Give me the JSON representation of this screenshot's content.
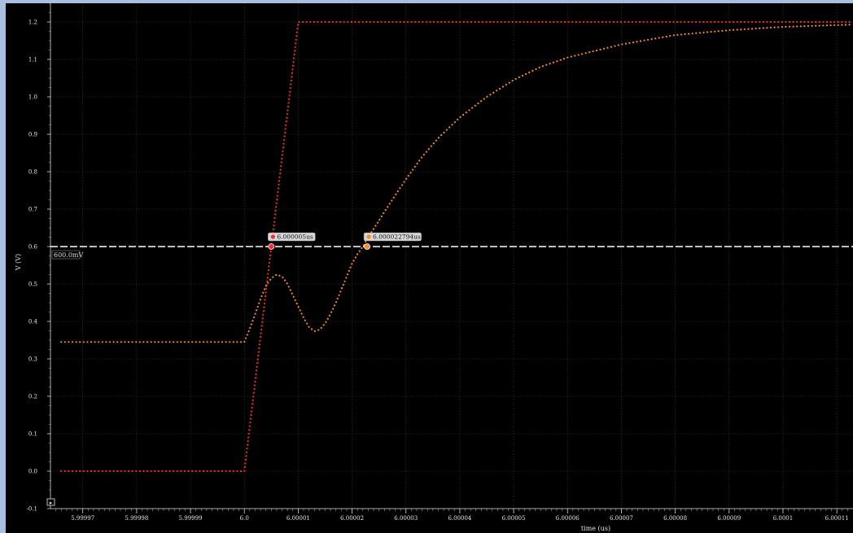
{
  "chart_data": {
    "type": "line",
    "xlabel": "time (us)",
    "ylabel": "V (V)",
    "xlim": [
      5.999964,
      6.000113
    ],
    "ylim": [
      -0.1,
      1.25
    ],
    "grid": true,
    "x_ticks": [
      5.99997,
      5.99998,
      5.99999,
      6.0,
      6.00001,
      6.00002,
      6.00003,
      6.00004,
      6.00005,
      6.00006,
      6.00007,
      6.00008,
      6.00009,
      6.0001,
      6.00011
    ],
    "x_tick_labels": [
      "5.99997",
      "5.99998",
      "5.99999",
      "6.0",
      "6.00001",
      "6.00002",
      "6.00003",
      "6.00004",
      "6.00005",
      "6.00006",
      "6.00007",
      "6.00008",
      "6.00009",
      "6.0001",
      "6.00011"
    ],
    "y_ticks": [
      -0.1,
      0.0,
      0.1,
      0.2,
      0.3,
      0.4,
      0.5,
      0.6,
      0.7,
      0.8,
      0.9,
      1.0,
      1.1,
      1.2
    ],
    "y_tick_labels": [
      "-0.1",
      "0.0",
      "0.1",
      "0.2",
      "0.3",
      "0.4",
      "0.5",
      "0.6",
      "0.7",
      "0.8",
      "0.9",
      "1.0",
      "1.1",
      "1.2"
    ],
    "series": [
      {
        "color": "#ff2a2a",
        "x": [
          5.999966,
          5.99998,
          5.99999,
          6.0,
          6.000001,
          6.000002,
          6.000003,
          6.000004,
          6.000005,
          6.000006,
          6.000007,
          6.000008,
          6.000009,
          6.00001,
          6.00002,
          6.00004,
          6.00006,
          6.00008,
          6.0001,
          6.000113
        ],
        "y": [
          0.0,
          0.0,
          0.0,
          0.0,
          0.12,
          0.24,
          0.36,
          0.48,
          0.6,
          0.72,
          0.84,
          0.96,
          1.08,
          1.2,
          1.2,
          1.2,
          1.2,
          1.2,
          1.2,
          1.2
        ]
      },
      {
        "color": "#ff8c1a",
        "x": [
          5.999966,
          5.99998,
          5.99999,
          6.0,
          6.000001,
          6.000002,
          6.000003,
          6.000004,
          6.000005,
          6.000006,
          6.000007,
          6.000008,
          6.000009,
          6.00001,
          6.000011,
          6.000012,
          6.000013,
          6.000014,
          6.000015,
          6.000016,
          6.000017,
          6.000018,
          6.000019,
          6.00002,
          6.000021,
          6.000022,
          6.000023,
          6.000025,
          6.000027,
          6.00003,
          6.000033,
          6.000036,
          6.00004,
          6.000045,
          6.00005,
          6.000055,
          6.00006,
          6.00007,
          6.00008,
          6.00009,
          6.0001,
          6.000113
        ],
        "y": [
          0.345,
          0.345,
          0.345,
          0.345,
          0.38,
          0.42,
          0.46,
          0.495,
          0.515,
          0.525,
          0.52,
          0.5,
          0.47,
          0.44,
          0.41,
          0.385,
          0.374,
          0.378,
          0.395,
          0.42,
          0.45,
          0.485,
          0.52,
          0.555,
          0.58,
          0.6,
          0.625,
          0.67,
          0.715,
          0.78,
          0.84,
          0.89,
          0.945,
          1.0,
          1.045,
          1.08,
          1.105,
          1.14,
          1.165,
          1.178,
          1.187,
          1.193
        ]
      }
    ],
    "reference_line": {
      "y": 0.6,
      "label": "600.0mV",
      "color": "#ffffff"
    },
    "markers": [
      {
        "x": 6.000005,
        "y": 0.6,
        "label": "6.000005us",
        "color": "#ff2a2a"
      },
      {
        "x": 6.000022794,
        "y": 0.6,
        "label": "6.000022794us",
        "color": "#ff8c1a"
      }
    ]
  },
  "controls": {
    "play_glyph": "▸"
  }
}
